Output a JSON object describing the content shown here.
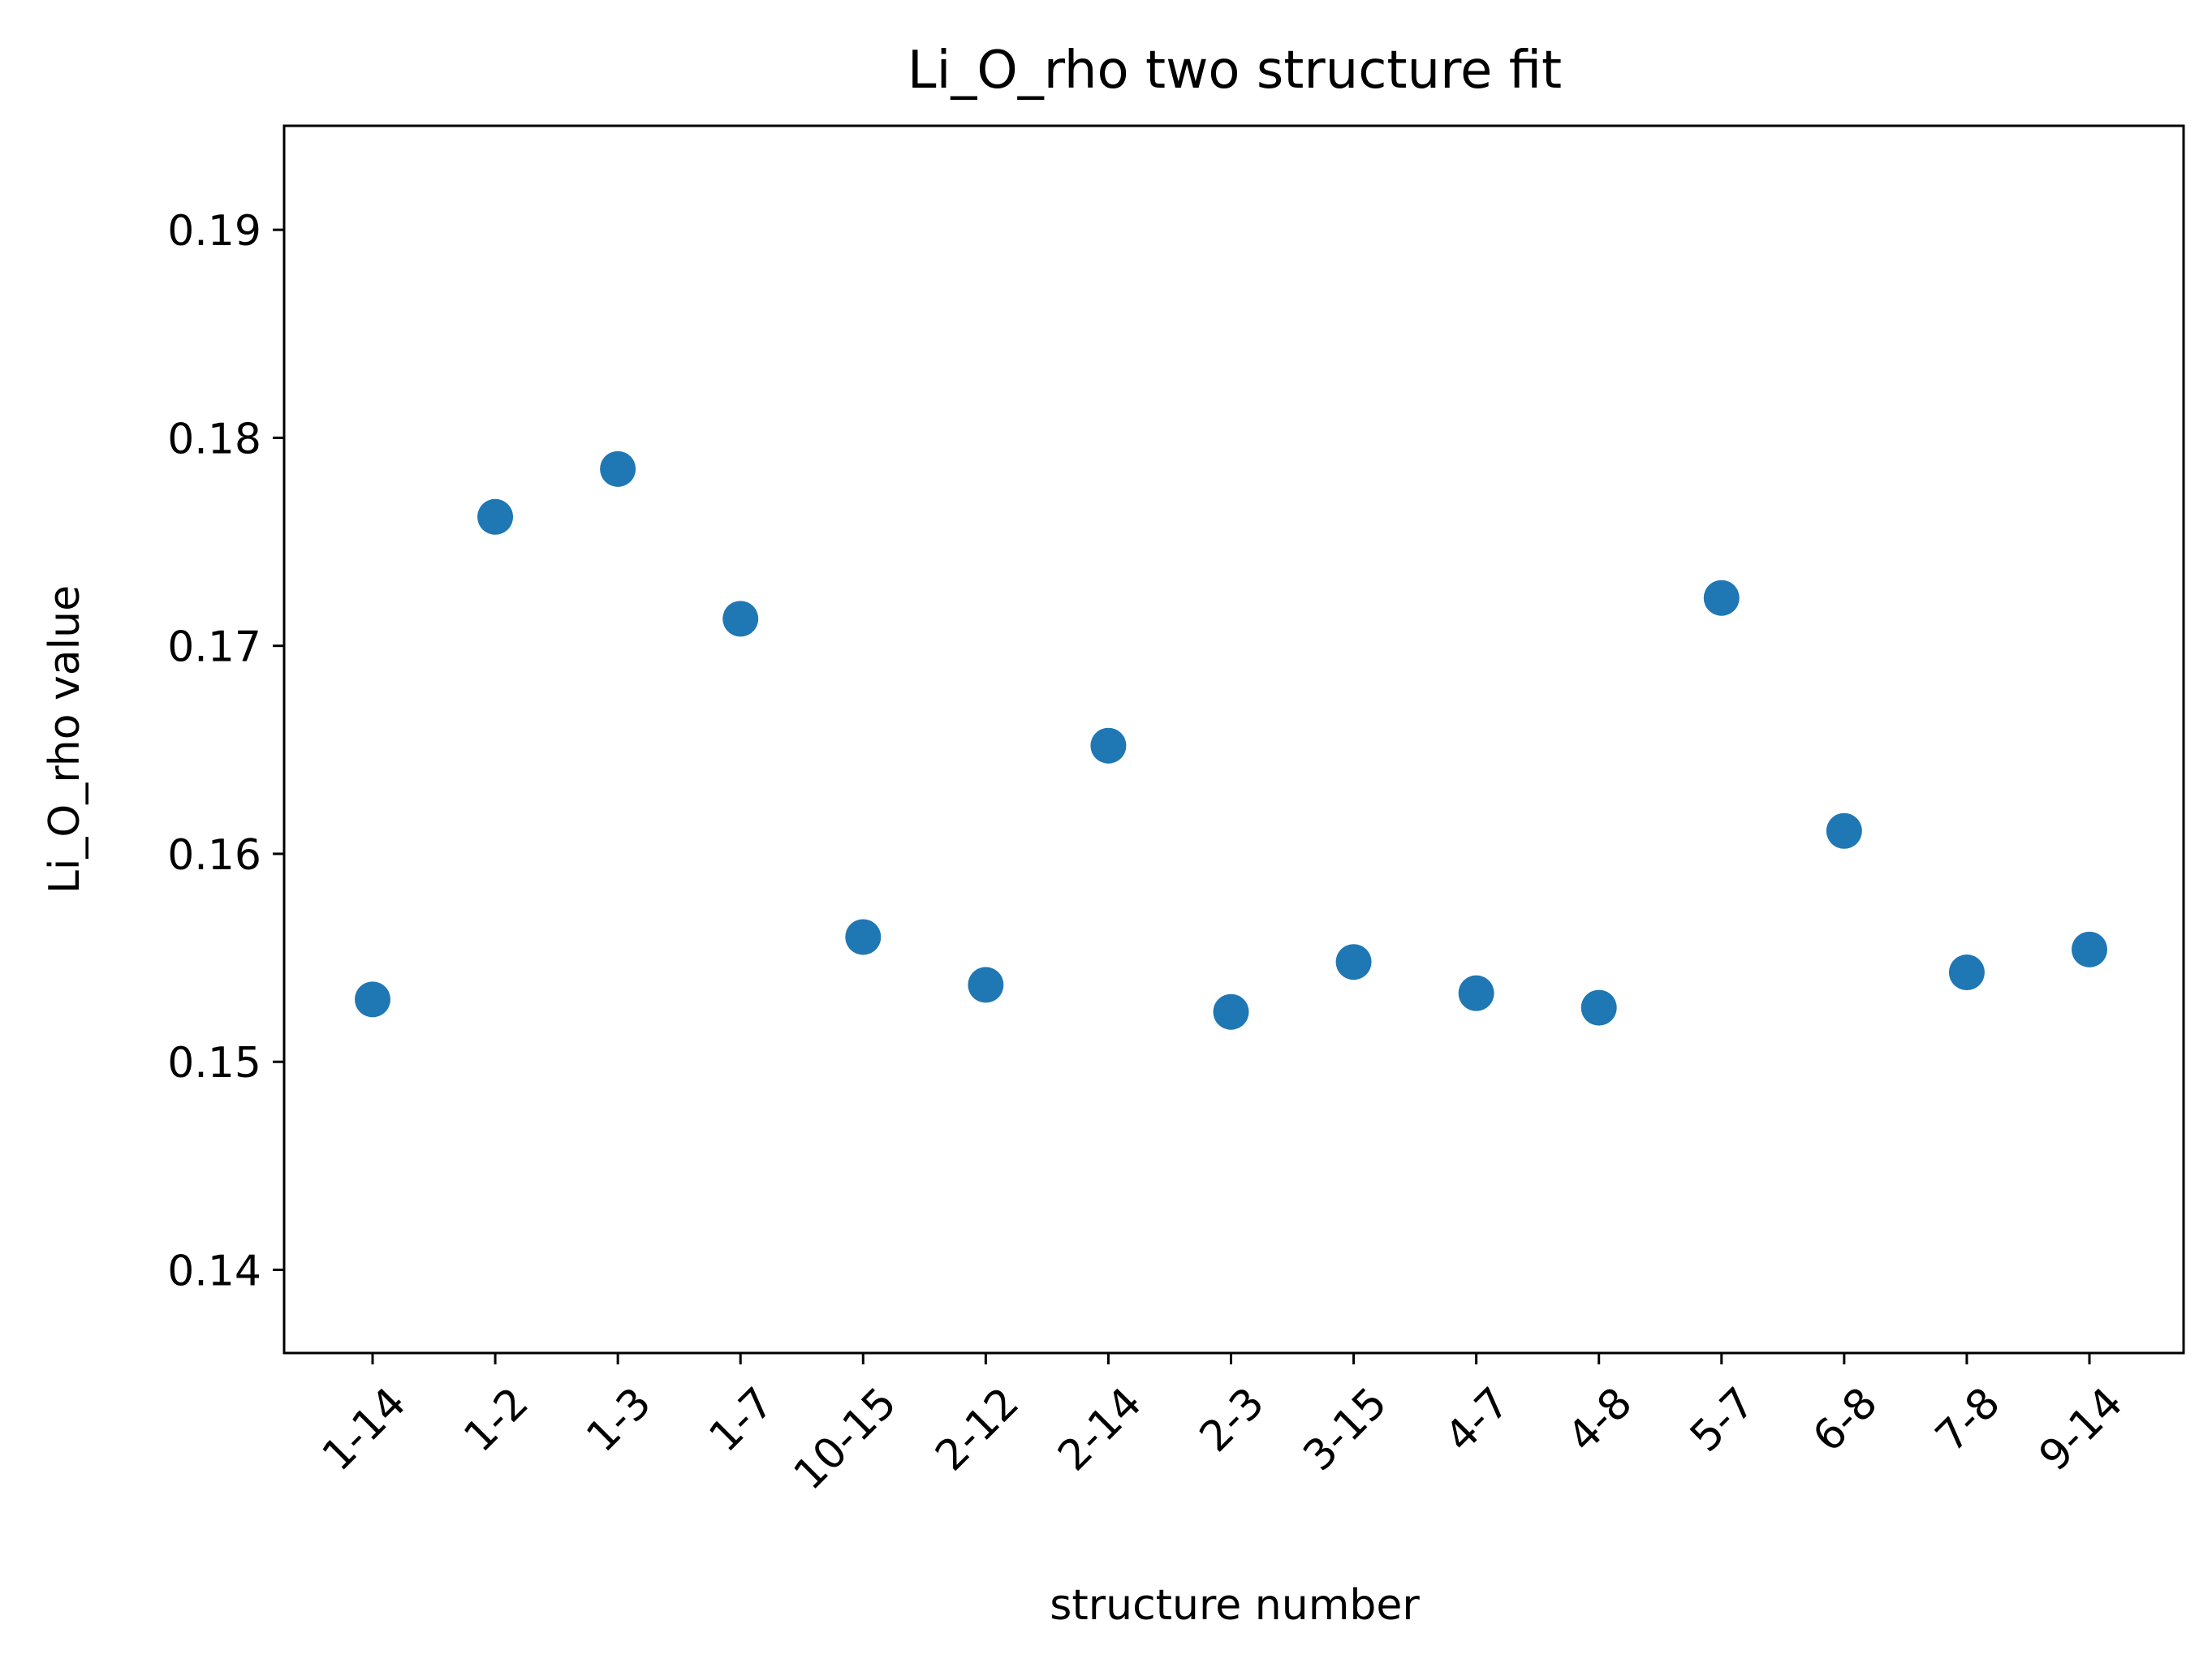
{
  "chart_data": {
    "type": "scatter",
    "title": "Li_O_rho two structure fit",
    "xlabel": "structure number",
    "ylabel": "Li_O_rho value",
    "categories": [
      "1-14",
      "1-2",
      "1-3",
      "1-7",
      "10-15",
      "2-12",
      "2-14",
      "2-3",
      "3-15",
      "4-7",
      "4-8",
      "5-7",
      "6-8",
      "7-8",
      "9-14"
    ],
    "values": [
      0.153,
      0.1762,
      0.1785,
      0.1713,
      0.156,
      0.1537,
      0.1652,
      0.1524,
      0.1548,
      0.1533,
      0.1526,
      0.1723,
      0.1611,
      0.1543,
      0.1554
    ],
    "ylim": [
      0.136,
      0.195
    ],
    "yticks": [
      0.14,
      0.15,
      0.16,
      0.17,
      0.18,
      0.19
    ],
    "ytick_labels": [
      "0.14",
      "0.15",
      "0.16",
      "0.17",
      "0.18",
      "0.19"
    ],
    "grid": false,
    "marker_color": "#1f77b4"
  }
}
